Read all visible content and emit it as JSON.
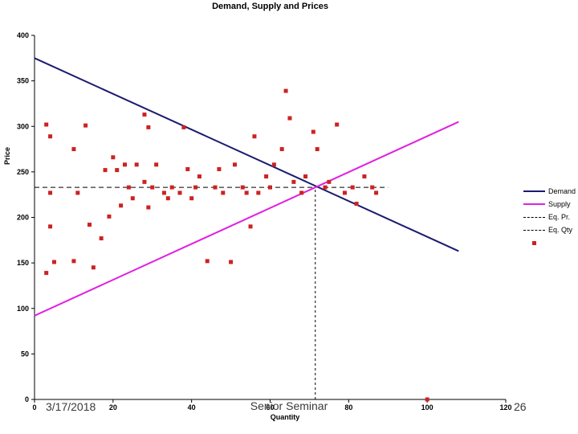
{
  "slide": {
    "date": "3/17/2018",
    "footer": "Senior Seminar",
    "slide_number": "26"
  },
  "chart_data": {
    "type": "line",
    "title": "Demand, Supply and Prices",
    "xlabel": "Quantity",
    "ylabel": "Price",
    "xlim": [
      0,
      120
    ],
    "ylim": [
      0,
      400
    ],
    "x_ticks": [
      0,
      20,
      40,
      60,
      80,
      100,
      120
    ],
    "y_ticks": [
      0,
      50,
      100,
      150,
      200,
      250,
      300,
      350,
      400
    ],
    "grid": false,
    "legend_position": "right",
    "equilibrium": {
      "price": 233,
      "quantity": 71.5
    },
    "series": [
      {
        "name": "Demand",
        "type": "line",
        "color": "#1b1b6f",
        "points": [
          [
            0,
            375
          ],
          [
            108,
            163
          ]
        ]
      },
      {
        "name": "Supply",
        "type": "line",
        "color": "#e020e0",
        "points": [
          [
            0,
            92
          ],
          [
            108,
            305
          ]
        ]
      },
      {
        "name": "Eq. Pr.",
        "type": "dashed-line",
        "color": "#000000",
        "dash": "6,4",
        "points": [
          [
            0,
            233
          ],
          [
            90,
            233
          ]
        ]
      },
      {
        "name": "Eq. Qty",
        "type": "dashed-line",
        "color": "#000000",
        "dash": "3,3",
        "points": [
          [
            71.5,
            0
          ],
          [
            71.5,
            233
          ]
        ]
      },
      {
        "name": "",
        "type": "scatter",
        "color": "#cc2222",
        "marker": "square",
        "points": [
          [
            3,
            302
          ],
          [
            4,
            289
          ],
          [
            4,
            227
          ],
          [
            4,
            190
          ],
          [
            3,
            139
          ],
          [
            5,
            151
          ],
          [
            10,
            275
          ],
          [
            11,
            227
          ],
          [
            10,
            152
          ],
          [
            13,
            301
          ],
          [
            14,
            192
          ],
          [
            15,
            145
          ],
          [
            17,
            177
          ],
          [
            18,
            252
          ],
          [
            19,
            201
          ],
          [
            20,
            266
          ],
          [
            21,
            252
          ],
          [
            22,
            213
          ],
          [
            23,
            258
          ],
          [
            24,
            233
          ],
          [
            25,
            221
          ],
          [
            26,
            258
          ],
          [
            28,
            239
          ],
          [
            29,
            211
          ],
          [
            29,
            299
          ],
          [
            28,
            313
          ],
          [
            30,
            233
          ],
          [
            31,
            258
          ],
          [
            33,
            227
          ],
          [
            34,
            221
          ],
          [
            35,
            233
          ],
          [
            37,
            227
          ],
          [
            38,
            299
          ],
          [
            39,
            253
          ],
          [
            40,
            221
          ],
          [
            41,
            233
          ],
          [
            42,
            245
          ],
          [
            44,
            152
          ],
          [
            46,
            233
          ],
          [
            47,
            253
          ],
          [
            48,
            227
          ],
          [
            50,
            151
          ],
          [
            51,
            258
          ],
          [
            53,
            233
          ],
          [
            54,
            227
          ],
          [
            55,
            190
          ],
          [
            56,
            289
          ],
          [
            57,
            227
          ],
          [
            59,
            245
          ],
          [
            60,
            233
          ],
          [
            61,
            258
          ],
          [
            63,
            275
          ],
          [
            64,
            339
          ],
          [
            65,
            309
          ],
          [
            66,
            239
          ],
          [
            68,
            227
          ],
          [
            69,
            245
          ],
          [
            71,
            294
          ],
          [
            72,
            275
          ],
          [
            74,
            233
          ],
          [
            75,
            239
          ],
          [
            77,
            302
          ],
          [
            79,
            227
          ],
          [
            81,
            233
          ],
          [
            82,
            215
          ],
          [
            84,
            245
          ],
          [
            86,
            233
          ],
          [
            87,
            227
          ],
          [
            100,
            0
          ]
        ]
      }
    ],
    "legend": [
      {
        "label": "Demand",
        "swatch": "line",
        "color": "#1b1b6f"
      },
      {
        "label": "Supply",
        "swatch": "line",
        "color": "#e020e0"
      },
      {
        "label": "Eq. Pr.",
        "swatch": "dashed",
        "color": "#000000"
      },
      {
        "label": "Eq. Qty",
        "swatch": "dashed",
        "color": "#000000"
      },
      {
        "label": "",
        "swatch": "square",
        "color": "#cc2222"
      }
    ]
  }
}
